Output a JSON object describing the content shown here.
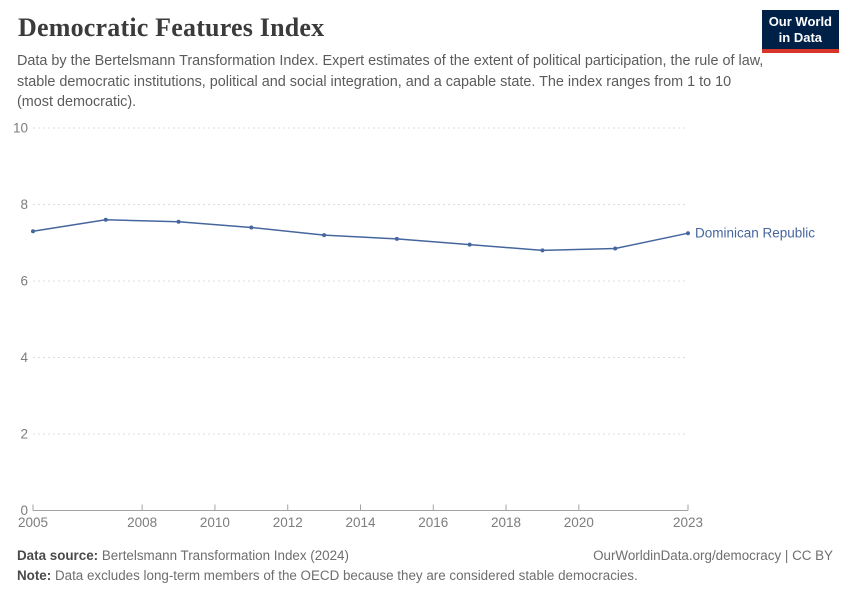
{
  "header": {
    "title": "Democratic Features Index",
    "subtitle": "Data by the Bertelsmann Transformation Index. Expert estimates of the extent of political participation, the rule of law, stable democratic institutions, political and social integration, and a capable state. The index ranges from 1 to 10 (most democratic).",
    "logo": {
      "line1": "Our World",
      "line2": "in Data",
      "bg_color": "#002147",
      "accent_color": "#d8352a"
    }
  },
  "chart_data": {
    "type": "line",
    "title": "Democratic Features Index",
    "x": [
      2005,
      2007,
      2009,
      2011,
      2013,
      2015,
      2017,
      2019,
      2021,
      2023
    ],
    "series": [
      {
        "name": "Dominican Republic",
        "values": [
          7.3,
          7.6,
          7.55,
          7.4,
          7.2,
          7.1,
          6.95,
          6.8,
          6.85,
          7.25
        ],
        "color": "#46669e"
      }
    ],
    "xlabel": "",
    "ylabel": "",
    "xlim": [
      2005,
      2023
    ],
    "ylim": [
      0,
      10
    ],
    "yticks": [
      0,
      2,
      4,
      6,
      8,
      10
    ],
    "xticks": [
      2005,
      2008,
      2010,
      2012,
      2014,
      2016,
      2018,
      2020,
      2023
    ],
    "grid": "horizontal dashed",
    "legend_position": "end-of-line label",
    "end_label": "Dominican Republic"
  },
  "footer": {
    "source_label": "Data source:",
    "source_text": "Bertelsmann Transformation Index (2024)",
    "link_text": "OurWorldinData.org/democracy | CC BY",
    "note_label": "Note:",
    "note_text": "Data excludes long-term members of the OECD because they are considered stable democracies."
  },
  "colors": {
    "line": "#46669e",
    "grid": "#dcdcdc",
    "axis": "#a3a3a3",
    "tick_label": "#7d7d7d",
    "title": "#3b3b3b",
    "subtitle": "#5b5b5b",
    "footer_text": "#6e6e6e"
  }
}
